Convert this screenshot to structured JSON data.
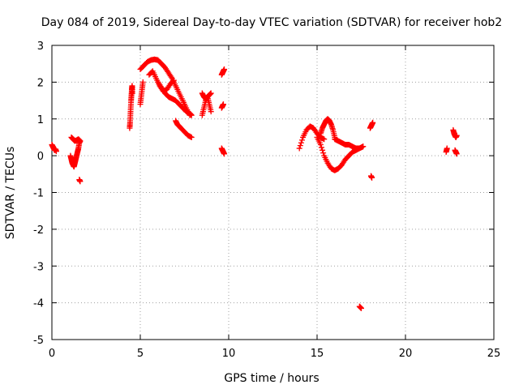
{
  "chart_data": {
    "type": "scatter",
    "title": "Day 084 of 2019, Sidereal Day-to-day VTEC variation (SDTVAR) for receiver hob2",
    "xlabel": "GPS time / hours",
    "ylabel": "SDTVAR / TECUs",
    "xlim": [
      0,
      25
    ],
    "ylim": [
      -5,
      3
    ],
    "xticks": [
      0,
      5,
      10,
      15,
      20,
      25
    ],
    "yticks": [
      -5,
      -4,
      -3,
      -2,
      -1,
      0,
      1,
      2,
      3
    ],
    "grid": true,
    "marker": "+",
    "color": "#ff0000",
    "series": [
      {
        "name": "hob2",
        "segments": [
          {
            "x": [
              0.0,
              0.05,
              0.1,
              0.15,
              0.2,
              0.25
            ],
            "y": [
              0.3,
              0.25,
              0.2,
              0.15,
              0.18,
              0.12
            ]
          },
          {
            "x": [
              1.05,
              1.1,
              1.15,
              1.2,
              1.25,
              1.3,
              1.35,
              1.4,
              1.45,
              1.5,
              1.55,
              1.6
            ],
            "y": [
              0.0,
              -0.1,
              -0.2,
              -0.25,
              -0.3,
              -0.2,
              -0.1,
              0.0,
              0.1,
              0.2,
              0.35,
              0.4
            ]
          },
          {
            "x": [
              1.1,
              1.2,
              1.3,
              1.4,
              1.5,
              1.6
            ],
            "y": [
              0.5,
              0.45,
              0.4,
              0.42,
              0.45,
              0.4
            ]
          },
          {
            "x": [
              1.55,
              1.6
            ],
            "y": [
              -0.65,
              -0.7
            ]
          },
          {
            "x": [
              4.4,
              4.42,
              4.44,
              4.46,
              4.48,
              4.5,
              4.52,
              4.54,
              4.56
            ],
            "y": [
              0.75,
              0.9,
              1.1,
              1.3,
              1.5,
              1.65,
              1.8,
              1.9,
              1.7
            ]
          },
          {
            "x": [
              5.0,
              5.05,
              5.1,
              5.15
            ],
            "y": [
              1.4,
              1.6,
              1.8,
              2.0
            ]
          },
          {
            "x": [
              5.0,
              5.2,
              5.4,
              5.6,
              5.8,
              6.0,
              6.2,
              6.4,
              6.6,
              6.8,
              7.0,
              7.2,
              7.4,
              7.6,
              7.8
            ],
            "y": [
              2.35,
              2.45,
              2.55,
              2.6,
              2.62,
              2.6,
              2.5,
              2.4,
              2.25,
              2.1,
              1.9,
              1.7,
              1.5,
              1.3,
              1.1
            ]
          },
          {
            "x": [
              5.5,
              5.7,
              5.9,
              6.1,
              6.3,
              6.5,
              6.7,
              6.9
            ],
            "y": [
              2.2,
              2.3,
              2.1,
              1.9,
              1.75,
              1.8,
              1.95,
              2.05
            ]
          },
          {
            "x": [
              6.0,
              6.2,
              6.4,
              6.6,
              6.8,
              7.0,
              7.2,
              7.4,
              7.6,
              7.8,
              7.9
            ],
            "y": [
              2.0,
              1.85,
              1.7,
              1.6,
              1.55,
              1.5,
              1.4,
              1.3,
              1.2,
              1.15,
              1.1
            ]
          },
          {
            "x": [
              7.0,
              7.1,
              7.2,
              7.3,
              7.5,
              7.7,
              7.9
            ],
            "y": [
              0.95,
              0.85,
              0.8,
              0.75,
              0.65,
              0.55,
              0.5
            ]
          },
          {
            "x": [
              8.5,
              8.6,
              8.7,
              8.8,
              8.9,
              9.0
            ],
            "y": [
              1.1,
              1.3,
              1.5,
              1.6,
              1.4,
              1.2
            ]
          },
          {
            "x": [
              8.5,
              8.6,
              8.7,
              8.8,
              8.9,
              9.0
            ],
            "y": [
              1.7,
              1.6,
              1.55,
              1.6,
              1.65,
              1.7
            ]
          },
          {
            "x": [
              9.6,
              9.65,
              9.7,
              9.75
            ],
            "y": [
              2.2,
              2.25,
              2.3,
              2.35
            ]
          },
          {
            "x": [
              9.6,
              9.65,
              9.7
            ],
            "y": [
              1.3,
              1.35,
              1.4
            ]
          },
          {
            "x": [
              9.6,
              9.65,
              9.7,
              9.75
            ],
            "y": [
              0.2,
              0.15,
              0.1,
              0.05
            ]
          },
          {
            "x": [
              14.0,
              14.2,
              14.4,
              14.6,
              14.8,
              15.0,
              15.2,
              15.4
            ],
            "y": [
              0.2,
              0.5,
              0.7,
              0.8,
              0.75,
              0.6,
              0.5,
              0.45
            ]
          },
          {
            "x": [
              15.2,
              15.3,
              15.4,
              15.5,
              15.6,
              15.7,
              15.8,
              15.9,
              16.0
            ],
            "y": [
              0.6,
              0.75,
              0.85,
              0.95,
              1.0,
              0.95,
              0.85,
              0.7,
              0.5
            ]
          },
          {
            "x": [
              15.0,
              15.2,
              15.4,
              15.6,
              15.8,
              16.0,
              16.2,
              16.4,
              16.6,
              16.8,
              17.0,
              17.2,
              17.4,
              17.6
            ],
            "y": [
              0.5,
              0.3,
              0.0,
              -0.2,
              -0.35,
              -0.4,
              -0.35,
              -0.25,
              -0.1,
              0.0,
              0.1,
              0.15,
              0.2,
              0.25
            ]
          },
          {
            "x": [
              16.0,
              16.2,
              16.4,
              16.6,
              16.8,
              17.0,
              17.2,
              17.4,
              17.6
            ],
            "y": [
              0.45,
              0.4,
              0.35,
              0.3,
              0.3,
              0.25,
              0.2,
              0.2,
              0.25
            ]
          },
          {
            "x": [
              17.4,
              17.5
            ],
            "y": [
              -4.1,
              -4.15
            ]
          },
          {
            "x": [
              18.0,
              18.05,
              18.1,
              18.15
            ],
            "y": [
              0.75,
              0.8,
              0.85,
              0.9
            ]
          },
          {
            "x": [
              18.05,
              18.1
            ],
            "y": [
              -0.55,
              -0.6
            ]
          },
          {
            "x": [
              22.3,
              22.35
            ],
            "y": [
              0.1,
              0.2
            ]
          },
          {
            "x": [
              22.7,
              22.75,
              22.8,
              22.85,
              22.9
            ],
            "y": [
              0.7,
              0.6,
              0.55,
              0.5,
              0.55
            ]
          },
          {
            "x": [
              22.8,
              22.85,
              22.9
            ],
            "y": [
              0.15,
              0.1,
              0.05
            ]
          }
        ]
      }
    ]
  }
}
